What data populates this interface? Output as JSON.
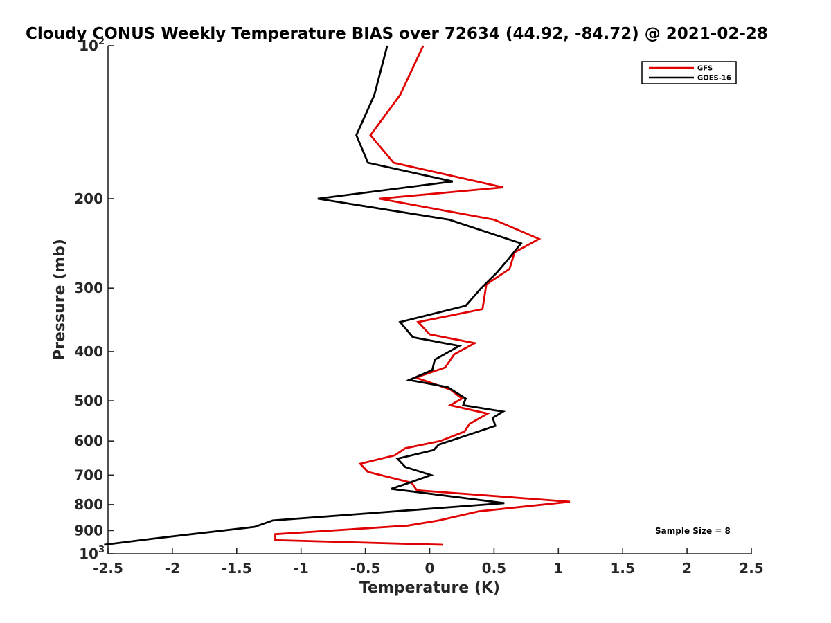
{
  "chart_data": {
    "type": "line",
    "title": "Cloudy CONUS Weekly Temperature BIAS over 72634 (44.92, -84.72) @ 2021-02-28",
    "xlabel": "Temperature (K)",
    "ylabel": "Pressure (mb)",
    "xlim": [
      -2.5,
      2.5
    ],
    "ylim": [
      100,
      1000
    ],
    "y_scale": "log",
    "y_reversed": true,
    "grid": false,
    "legend_placement": "top-right",
    "x_ticks": [
      "-2.5",
      "-2",
      "-1.5",
      "-1",
      "-0.5",
      "0",
      "0.5",
      "1",
      "1.5",
      "2",
      "2.5"
    ],
    "x_tick_values": [
      -2.5,
      -2,
      -1.5,
      -1,
      -0.5,
      0,
      0.5,
      1,
      1.5,
      2,
      2.5
    ],
    "y_ticks": [
      {
        "value": 100,
        "base": "10",
        "exp": "2",
        "label": ""
      },
      {
        "value": 200,
        "label": "200"
      },
      {
        "value": 300,
        "label": "300"
      },
      {
        "value": 400,
        "label": "400"
      },
      {
        "value": 500,
        "label": "500"
      },
      {
        "value": 600,
        "label": "600"
      },
      {
        "value": 700,
        "label": "700"
      },
      {
        "value": 800,
        "label": "800"
      },
      {
        "value": 900,
        "label": "900"
      },
      {
        "value": 1000,
        "base": "10",
        "exp": "3",
        "label": ""
      }
    ],
    "series": [
      {
        "name": "GFS",
        "color": "#e00000",
        "points": [
          [
            -0.05,
            100
          ],
          [
            -0.23,
            125
          ],
          [
            -0.46,
            150
          ],
          [
            -0.28,
            170
          ],
          [
            0.57,
            190
          ],
          [
            -0.39,
            200
          ],
          [
            0.5,
            220
          ],
          [
            0.85,
            240
          ],
          [
            0.66,
            255
          ],
          [
            0.62,
            275
          ],
          [
            0.44,
            295
          ],
          [
            0.41,
            330
          ],
          [
            -0.09,
            350
          ],
          [
            0.0,
            370
          ],
          [
            0.35,
            385
          ],
          [
            0.19,
            405
          ],
          [
            0.12,
            430
          ],
          [
            -0.11,
            450
          ],
          [
            0.16,
            475
          ],
          [
            0.25,
            495
          ],
          [
            0.16,
            510
          ],
          [
            0.45,
            530
          ],
          [
            0.31,
            555
          ],
          [
            0.27,
            575
          ],
          [
            0.08,
            600
          ],
          [
            -0.19,
            620
          ],
          [
            -0.27,
            640
          ],
          [
            -0.54,
            665
          ],
          [
            -0.48,
            690
          ],
          [
            -0.14,
            725
          ],
          [
            -0.1,
            750
          ],
          [
            0.65,
            775
          ],
          [
            1.09,
            790
          ],
          [
            0.38,
            825
          ],
          [
            0.07,
            860
          ],
          [
            -0.17,
            880
          ],
          [
            -1.2,
            915
          ],
          [
            -1.2,
            940
          ],
          [
            0.1,
            960
          ]
        ]
      },
      {
        "name": "GOES-16",
        "color": "#000000",
        "points": [
          [
            -0.33,
            100
          ],
          [
            -0.43,
            125
          ],
          [
            -0.57,
            150
          ],
          [
            -0.48,
            170
          ],
          [
            0.18,
            185
          ],
          [
            -0.87,
            200
          ],
          [
            0.15,
            220
          ],
          [
            0.71,
            245
          ],
          [
            0.6,
            265
          ],
          [
            0.52,
            280
          ],
          [
            0.4,
            300
          ],
          [
            0.28,
            325
          ],
          [
            -0.23,
            350
          ],
          [
            -0.13,
            375
          ],
          [
            0.23,
            390
          ],
          [
            0.04,
            415
          ],
          [
            0.02,
            435
          ],
          [
            -0.16,
            455
          ],
          [
            0.14,
            470
          ],
          [
            0.28,
            495
          ],
          [
            0.26,
            510
          ],
          [
            0.57,
            525
          ],
          [
            0.49,
            540
          ],
          [
            0.51,
            560
          ],
          [
            0.33,
            580
          ],
          [
            0.07,
            610
          ],
          [
            0.03,
            625
          ],
          [
            -0.25,
            650
          ],
          [
            -0.19,
            675
          ],
          [
            0.01,
            700
          ],
          [
            -0.16,
            725
          ],
          [
            -0.3,
            745
          ],
          [
            0.58,
            795
          ],
          [
            -1.22,
            860
          ],
          [
            -1.36,
            885
          ],
          [
            -2.17,
            935
          ],
          [
            -2.53,
            960
          ]
        ]
      }
    ],
    "annotation": "Sample Size = 8"
  }
}
